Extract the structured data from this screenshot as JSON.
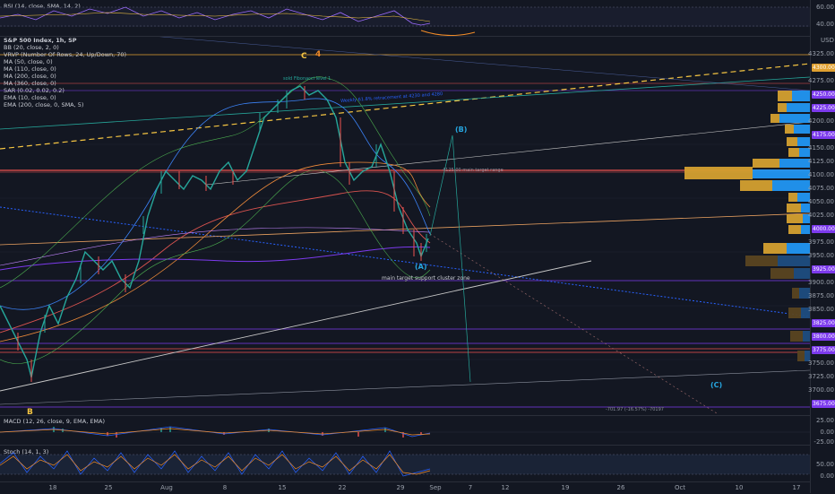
{
  "rsi": {
    "title": "RSI (14, close, SMA, 14, 2)",
    "levels": [
      "60.00",
      "40.00"
    ]
  },
  "main": {
    "symbol": "S&P 500 Index, 1h, SP",
    "indicators": [
      "BB (20, close, 2, 0)",
      "VRVP (Number Of Rows, 24, Up/Down, 70)",
      "MA (50, close, 0)",
      "MA (110, close, 0)",
      "MA (200, close, 0)",
      "MA (360, close, 0)",
      "SAR (0.02, 0.02, 0.2)",
      "EMA (10, close, 0)",
      "EMA (200, close, 0, SMA, 5)"
    ],
    "annotations": {
      "wave_c_top": "C",
      "wave_4": "4",
      "wave_b": "B",
      "wave_a": "(A)",
      "wave_b_paren": "(B)",
      "wave_c_paren": "(C)",
      "support_zone": "main target support cluster zone",
      "note_left": "sold Fibonacci level 1",
      "note_blue": "Weekly 61.8% retracement at 4230 and 4280",
      "note_mid": "4125.00 main target range",
      "note_bottom": "-701.97 (-16.57%) -70197"
    },
    "price_labels": [
      {
        "text": "USD",
        "color": ""
      },
      {
        "text": "4325.00",
        "color": ""
      },
      {
        "text": "4300.00",
        "color": "#e0a030"
      },
      {
        "text": "4275.00",
        "color": ""
      },
      {
        "text": "4250.00",
        "color": "#7c3aed"
      },
      {
        "text": "4225.00",
        "color": "#7c3aed"
      },
      {
        "text": "4200.00",
        "color": ""
      },
      {
        "text": "4175.00",
        "color": "#7c3aed"
      },
      {
        "text": "4150.00",
        "color": ""
      },
      {
        "text": "4125.00",
        "color": ""
      },
      {
        "text": "4100.00",
        "color": ""
      },
      {
        "text": "4075.00",
        "color": ""
      },
      {
        "text": "4050.00",
        "color": ""
      },
      {
        "text": "4025.00",
        "color": ""
      },
      {
        "text": "4000.00",
        "color": "#7c3aed"
      },
      {
        "text": "3975.00",
        "color": ""
      },
      {
        "text": "3950.00",
        "color": ""
      },
      {
        "text": "3925.00",
        "color": "#7c3aed"
      },
      {
        "text": "3900.00",
        "color": ""
      },
      {
        "text": "3875.00",
        "color": ""
      },
      {
        "text": "3850.00",
        "color": ""
      },
      {
        "text": "3825.00",
        "color": "#7c3aed"
      },
      {
        "text": "3800.00",
        "color": "#7c3aed"
      },
      {
        "text": "3775.00",
        "color": "#7c3aed"
      },
      {
        "text": "3750.00",
        "color": ""
      },
      {
        "text": "3725.00",
        "color": ""
      },
      {
        "text": "3700.00",
        "color": ""
      },
      {
        "text": "3675.00",
        "color": "#7c3aed"
      }
    ]
  },
  "macd": {
    "title": "MACD (12, 26, close, 9, EMA, EMA)",
    "levels": [
      "25.00",
      "0.00",
      "-25.00"
    ]
  },
  "stoch": {
    "title": "Stoch (14, 1, 3)",
    "levels": [
      "50.00",
      "0.00"
    ]
  },
  "time_axis": [
    "18",
    "25",
    "Aug",
    "8",
    "15",
    "22",
    "29",
    "Sep",
    "7",
    "12",
    "19",
    "26",
    "Oct",
    "10",
    "17"
  ],
  "colors": {
    "background": "#131722",
    "up": "#26a69a",
    "down": "#ef5350",
    "volume_profile_up": "#2196f3",
    "volume_profile_down": "#d4a030",
    "gold_line": "#f5c542",
    "purple_band": "#7c3aed"
  }
}
